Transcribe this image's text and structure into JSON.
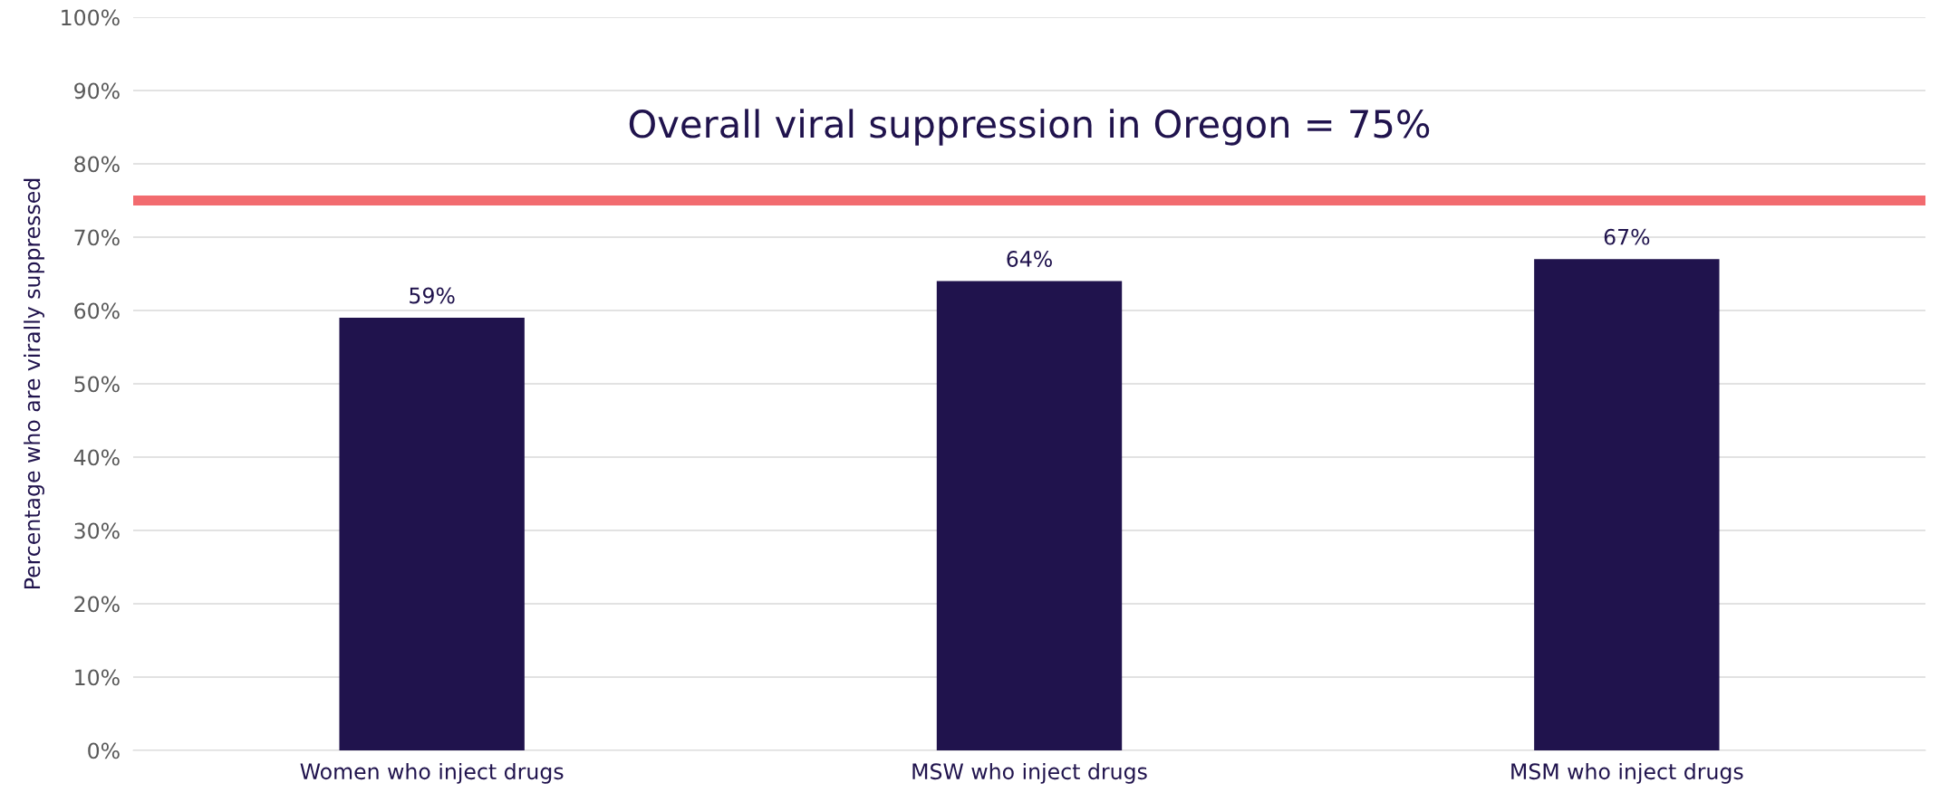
{
  "chart_data": {
    "type": "bar",
    "ylabel": "Percentage who are virally suppressed",
    "categories": [
      "Women who inject drugs",
      "MSW who inject drugs",
      "MSM who inject drugs"
    ],
    "values": [
      59,
      64,
      67
    ],
    "color": "#20134d",
    "value_labels": [
      "59%",
      "64%",
      "67%"
    ],
    "ylim": [
      0,
      100
    ],
    "yticks": [
      {
        "value": 0,
        "label": "0%"
      },
      {
        "value": 10,
        "label": "10%"
      },
      {
        "value": 20,
        "label": "20%"
      },
      {
        "value": 30,
        "label": "30%"
      },
      {
        "value": 40,
        "label": "40%"
      },
      {
        "value": 50,
        "label": "50%"
      },
      {
        "value": 60,
        "label": "60%"
      },
      {
        "value": 70,
        "label": "70%"
      },
      {
        "value": 80,
        "label": "80%"
      },
      {
        "value": 90,
        "label": "90%"
      },
      {
        "value": 100,
        "label": "100%"
      }
    ],
    "grid": "y",
    "ref_lines": [
      {
        "axis": "y",
        "value": 75,
        "label": "Overall viral suppression in Oregon = 75%",
        "color": "#f26b6f"
      }
    ]
  }
}
